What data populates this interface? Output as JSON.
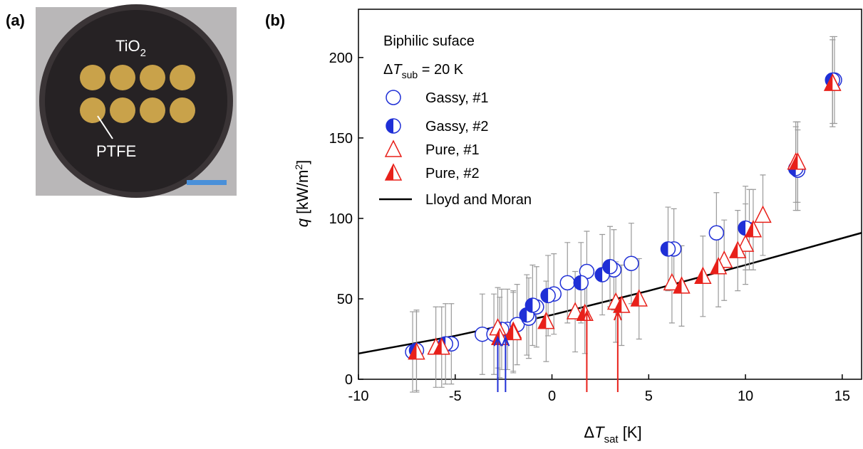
{
  "photo": {
    "panel_label": "(a)",
    "top_text": "TiO",
    "top_text_sub": "2",
    "pointer_text": "PTFE"
  },
  "chart_data": {
    "type": "scatter",
    "panel_label": "(b)",
    "annotation_title": "Biphilic suface",
    "annotation_condition": {
      "delta": "Δ",
      "symbol": "T",
      "sub": "sub",
      "rest": " = 20 K"
    },
    "xlabel": {
      "delta": "Δ",
      "symbol": "T",
      "sub": "sat",
      "unit": " [K]"
    },
    "ylabel": {
      "symbol": "q",
      "unit": " [kW/m",
      "sup": "2",
      "close": "]"
    },
    "xlim": [
      -10,
      16
    ],
    "xticks": [
      -10,
      -5,
      0,
      5,
      10,
      15
    ],
    "ylim": [
      0,
      230
    ],
    "yticks": [
      0,
      50,
      100,
      150,
      200
    ],
    "series": [
      {
        "name": "Gassy, #1",
        "color": "#1f2fd6",
        "marker": "circle-open",
        "x": [
          -7.2,
          -5.2,
          -3.6,
          -3,
          -2.3,
          -1.8,
          -1.2,
          -0.8,
          0.1,
          0.8,
          1.8,
          3.2,
          4.1,
          6.3,
          8.5,
          10.2,
          12.7,
          14.6
        ],
        "values": [
          17,
          22,
          28,
          28,
          31,
          34,
          38,
          45,
          53,
          60,
          67,
          68,
          72,
          81,
          91,
          93,
          130,
          186
        ],
        "errors": [
          25,
          25,
          25,
          25,
          25,
          25,
          25,
          25,
          25,
          25,
          25,
          25,
          25,
          25,
          25,
          25,
          25,
          27
        ]
      },
      {
        "name": "Gassy, #2",
        "color": "#1f2fd6",
        "marker": "circle-half",
        "x": [
          -7,
          -5.5,
          -2.6,
          -1.3,
          -1,
          -0.2,
          1.5,
          2.6,
          3,
          6,
          10,
          12.6,
          14.5
        ],
        "values": [
          18,
          22,
          31,
          40,
          46,
          52,
          60,
          65,
          70,
          81,
          94,
          131,
          186
        ],
        "errors": [
          25,
          25,
          25,
          25,
          25,
          25,
          25,
          25,
          25,
          26,
          26,
          26,
          27
        ]
      },
      {
        "name": "Pure, #1",
        "color": "#e8201a",
        "marker": "triangle-open",
        "x": [
          -6,
          -2.8,
          -2,
          1.2,
          3.3,
          6.2,
          8.9,
          10,
          10.9,
          12.6,
          14.5
        ],
        "values": [
          20,
          32,
          30,
          42,
          48,
          60,
          74,
          84,
          102,
          135,
          184
        ],
        "errors": [
          25,
          25,
          25,
          25,
          25,
          25,
          25,
          25,
          25,
          25,
          27
        ]
      },
      {
        "name": "Pure, #2",
        "color": "#e8201a",
        "marker": "triangle-half",
        "x": [
          -7,
          -5.7,
          -2.7,
          -2,
          -0.3,
          1.7,
          3.6,
          4.5,
          6.7,
          7.8,
          8.6,
          9.6,
          10.4,
          12.7,
          14.5
        ],
        "values": [
          17,
          20,
          26,
          29,
          36,
          41,
          46,
          50,
          58,
          64,
          70,
          80,
          93,
          135,
          184
        ],
        "errors": [
          25,
          25,
          25,
          25,
          25,
          25,
          25,
          25,
          25,
          25,
          25,
          25,
          25,
          25,
          27
        ]
      }
    ],
    "curve": {
      "name": "Lloyd and Moran",
      "color": "#000000",
      "x": [
        -10,
        -5,
        0,
        5,
        10,
        16
      ],
      "values": [
        16,
        27,
        40,
        55,
        71,
        91
      ]
    },
    "arrows": [
      {
        "x": -2.8,
        "y": 26,
        "color": "#1f2fd6"
      },
      {
        "x": -2.4,
        "y": 26,
        "color": "#1f2fd6"
      },
      {
        "x": 1.8,
        "y": 42,
        "color": "#e8201a"
      },
      {
        "x": 3.4,
        "y": 42,
        "color": "#e8201a"
      }
    ]
  }
}
